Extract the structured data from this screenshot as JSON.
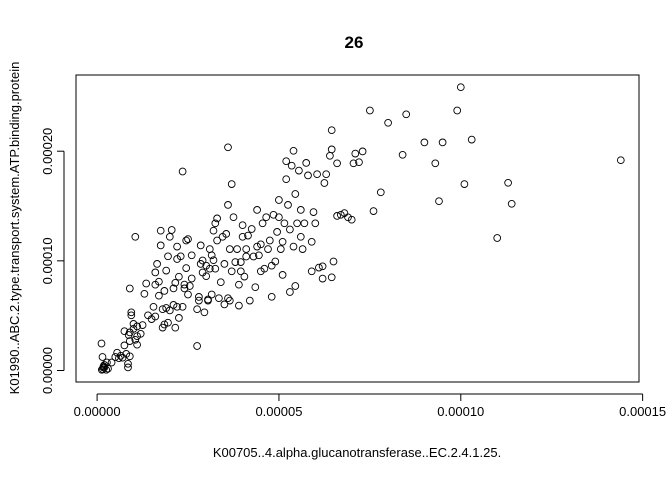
{
  "chart_data": {
    "type": "scatter",
    "title": "26",
    "xlabel": "K00705..4.alpha.glucanotransferase..EC.2.4.1.25.",
    "ylabel": "K01990..ABC.2.type.transport.system.ATP.binding.protein",
    "xlim": [
      -5.8e-06,
      0.000149
    ],
    "ylim": [
      -1.05e-05,
      0.0002695
    ],
    "x_ticks": [
      0,
      5e-05,
      0.0001,
      0.00015
    ],
    "x_tick_labels": [
      "0.00000",
      "0.00005",
      "0.00010",
      "0.00015"
    ],
    "y_ticks": [
      0,
      0.0001,
      0.0002
    ],
    "y_tick_labels": [
      "0.00000",
      "0.00010",
      "0.00020"
    ],
    "grid": false,
    "legend": "none",
    "marker": "open-circle",
    "series": [
      {
        "points": [
          [
            1.3e-06,
            6e-07
          ],
          [
            1.6e-06,
            1.2e-06
          ],
          [
            1.7e-06,
            2.8e-06
          ],
          [
            1.8e-06,
            3.9e-06
          ],
          [
            2e-06,
            2.8e-06
          ],
          [
            2e-06,
            5e-06
          ],
          [
            2.5e-06,
            6e-07
          ],
          [
            3e-06,
            1.7e-06
          ],
          [
            1.5e-06,
            1.23e-05
          ],
          [
            1.2e-06,
            2.46e-05
          ],
          [
            2.7e-06,
            7.3e-06
          ],
          [
            4e-06,
            7.3e-06
          ],
          [
            5e-06,
            1.23e-05
          ],
          [
            5.5e-06,
            1.62e-05
          ],
          [
            6e-06,
            1.12e-05
          ],
          [
            6.5e-06,
            1.34e-05
          ],
          [
            7e-06,
            1.17e-05
          ],
          [
            7.5e-06,
            2.29e-05
          ],
          [
            7.5e-06,
            3.58e-05
          ],
          [
            8e-06,
            1.51e-05
          ],
          [
            8.5e-06,
            2.8e-06
          ],
          [
            8.5e-06,
            6.1e-06
          ],
          [
            9e-06,
            1.29e-05
          ],
          [
            9e-06,
            2.68e-05
          ],
          [
            8.7e-06,
            3.24e-05
          ],
          [
            9e-06,
            3.47e-05
          ],
          [
            9.4e-06,
            5.03e-05
          ],
          [
            9.4e-06,
            5.31e-05
          ],
          [
            9e-06,
            7.48e-05
          ],
          [
            1e-05,
            3.8e-05
          ],
          [
            1e-05,
            4.25e-05
          ],
          [
            1.05e-05,
            2.8e-05
          ],
          [
            1.1e-05,
            2.35e-05
          ],
          [
            1.1e-05,
            3.13e-05
          ],
          [
            1.1e-05,
            4.02e-05
          ],
          [
            1.05e-05,
            0.0001219
          ],
          [
            1.2e-05,
            3.35e-05
          ],
          [
            1.25e-05,
            4.14e-05
          ],
          [
            1.3e-05,
            6.99e-05
          ],
          [
            1.35e-05,
            7.93e-05
          ],
          [
            1.4e-05,
            5.03e-05
          ],
          [
            1.5e-05,
            4.69e-05
          ],
          [
            1.55e-05,
            5.81e-05
          ],
          [
            1.6e-05,
            4.92e-05
          ],
          [
            1.6e-05,
            7.82e-05
          ],
          [
            1.6e-05,
            8.95e-05
          ],
          [
            1.65e-05,
            9.72e-05
          ],
          [
            1.7e-05,
            6.82e-05
          ],
          [
            1.7e-05,
            8.1e-05
          ],
          [
            1.75e-05,
            0.0001141
          ],
          [
            1.75e-05,
            0.0001275
          ],
          [
            1.8e-05,
            3.91e-05
          ],
          [
            1.8e-05,
            5.59e-05
          ],
          [
            1.85e-05,
            4.19e-05
          ],
          [
            1.85e-05,
            7.26e-05
          ],
          [
            1.9e-05,
            5.7e-05
          ],
          [
            1.9e-05,
            9.11e-05
          ],
          [
            1.95e-05,
            4.36e-05
          ],
          [
            1.95e-05,
            0.0001041
          ],
          [
            2e-05,
            5.48e-05
          ],
          [
            2e-05,
            0.0001219
          ],
          [
            2.05e-05,
            0.0001281
          ],
          [
            2.1e-05,
            7.49e-05
          ],
          [
            2.1e-05,
            5.98e-05
          ],
          [
            2.15e-05,
            3.9e-05
          ],
          [
            2.15e-05,
            8e-05
          ],
          [
            2.2e-05,
            5.81e-05
          ],
          [
            2.2e-05,
            0.000113
          ],
          [
            2.2e-05,
            0.0001017
          ],
          [
            2.25e-05,
            8.55e-05
          ],
          [
            2.25e-05,
            4.8e-05
          ],
          [
            2.3e-05,
            0.0001041
          ],
          [
            2.35e-05,
            0.0001815
          ],
          [
            2.35e-05,
            5.81e-05
          ],
          [
            2.4e-05,
            7.83e-05
          ],
          [
            2.4e-05,
            7.49e-05
          ],
          [
            2.45e-05,
            9.34e-05
          ],
          [
            2.45e-05,
            0.0001186
          ],
          [
            2.5e-05,
            6.93e-05
          ],
          [
            2.5e-05,
            0.0001198
          ],
          [
            2.55e-05,
            7.71e-05
          ],
          [
            2.6e-05,
            8.39e-05
          ],
          [
            2.6e-05,
            0.0001051
          ],
          [
            2.75e-05,
            5.59e-05
          ],
          [
            2.75e-05,
            2.23e-05
          ],
          [
            2.8e-05,
            6.37e-05
          ],
          [
            2.8e-05,
            6.71e-05
          ],
          [
            2.85e-05,
            9.72e-05
          ],
          [
            2.85e-05,
            0.0001141
          ],
          [
            2.9e-05,
            8.94e-05
          ],
          [
            2.9e-05,
            0.0001003
          ],
          [
            2.95e-05,
            5.31e-05
          ],
          [
            3e-05,
            8.6e-05
          ],
          [
            3e-05,
            9.56e-05
          ],
          [
            3.05e-05,
            6.37e-05
          ],
          [
            3.05e-05,
            6.47e-05
          ],
          [
            3.1e-05,
            9.28e-05
          ],
          [
            3.1e-05,
            0.0001107
          ],
          [
            3.15e-05,
            0.0001051
          ],
          [
            3.15e-05,
            6.93e-05
          ],
          [
            3.2e-05,
            0.0001006
          ],
          [
            3.2e-05,
            0.0001275
          ],
          [
            3.25e-05,
            9.28e-05
          ],
          [
            3.25e-05,
            0.0001342
          ],
          [
            3.3e-05,
            0.0001186
          ],
          [
            3.3e-05,
            0.0001387
          ],
          [
            3.35e-05,
            6.59e-05
          ],
          [
            3.4e-05,
            8.05e-05
          ],
          [
            3.45e-05,
            0.0001219
          ],
          [
            3.5e-05,
            6.03e-05
          ],
          [
            3.5e-05,
            9.72e-05
          ],
          [
            3.55e-05,
            0.0001246
          ],
          [
            3.6e-05,
            6.59e-05
          ],
          [
            3.6e-05,
            0.000151
          ],
          [
            3.6e-05,
            0.0002036
          ],
          [
            3.65e-05,
            6.37e-05
          ],
          [
            3.65e-05,
            0.0001107
          ],
          [
            3.7e-05,
            9.05e-05
          ],
          [
            3.7e-05,
            0.00017
          ],
          [
            3.75e-05,
            0.0001398
          ],
          [
            3.8e-05,
            9.89e-05
          ],
          [
            3.85e-05,
            0.0001107
          ],
          [
            3.9e-05,
            5.92e-05
          ],
          [
            3.9e-05,
            7.82e-05
          ],
          [
            3.95e-05,
            9.05e-05
          ],
          [
            3.95e-05,
            9.89e-05
          ],
          [
            4e-05,
            0.0001219
          ],
          [
            4e-05,
            0.0001325
          ],
          [
            4.05e-05,
            8.56e-05
          ],
          [
            4.1e-05,
            0.0001107
          ],
          [
            4.1e-05,
            0.000104
          ],
          [
            4.15e-05,
            0.000123
          ],
          [
            4.2e-05,
            6.37e-05
          ],
          [
            4.25e-05,
            0.000129
          ],
          [
            4.3e-05,
            0.000104
          ],
          [
            4.35e-05,
            7.6e-05
          ],
          [
            4.4e-05,
            0.000113
          ],
          [
            4.4e-05,
            0.0001465
          ],
          [
            4.45e-05,
            0.0001051
          ],
          [
            4.5e-05,
            0.0001151
          ],
          [
            4.5e-05,
            9.05e-05
          ],
          [
            4.55e-05,
            0.0001342
          ],
          [
            4.6e-05,
            9.28e-05
          ],
          [
            4.65e-05,
            0.0001398
          ],
          [
            4.7e-05,
            0.0001107
          ],
          [
            4.75e-05,
            0.0001186
          ],
          [
            4.8e-05,
            6.72e-05
          ],
          [
            4.8e-05,
            9.56e-05
          ],
          [
            4.85e-05,
            0.000142
          ],
          [
            4.9e-05,
            9.94e-05
          ],
          [
            4.95e-05,
            0.0001264
          ],
          [
            5e-05,
            0.0001398
          ],
          [
            5e-05,
            0.0001555
          ],
          [
            5.05e-05,
            0.0001107
          ],
          [
            5.1e-05,
            8.72e-05
          ],
          [
            5.1e-05,
            0.0001174
          ],
          [
            5.15e-05,
            0.0001342
          ],
          [
            5.2e-05,
            0.0001745
          ],
          [
            5.2e-05,
            0.0001909
          ],
          [
            5.25e-05,
            0.000151
          ],
          [
            5.3e-05,
            7.16e-05
          ],
          [
            5.3e-05,
            0.0001286
          ],
          [
            5.35e-05,
            0.0001868
          ],
          [
            5.4e-05,
            0.0002004
          ],
          [
            5.4e-05,
            0.000113
          ],
          [
            5.45e-05,
            0.000161
          ],
          [
            5.45e-05,
            7.71e-05
          ],
          [
            5.5e-05,
            0.0001342
          ],
          [
            5.55e-05,
            0.0001823
          ],
          [
            5.6e-05,
            0.0001219
          ],
          [
            5.6e-05,
            0.0001465
          ],
          [
            5.65e-05,
            0.0001107
          ],
          [
            5.7e-05,
            0.0001342
          ],
          [
            5.75e-05,
            0.0001893
          ],
          [
            5.8e-05,
            0.0001779
          ],
          [
            5.9e-05,
            9.05e-05
          ],
          [
            5.9e-05,
            0.0001174
          ],
          [
            5.95e-05,
            0.0001445
          ],
          [
            6e-05,
            0.0001342
          ],
          [
            6.05e-05,
            0.000179
          ],
          [
            6.1e-05,
            9.38e-05
          ],
          [
            6.2e-05,
            8.38e-05
          ],
          [
            6.2e-05,
            9.5e-05
          ],
          [
            6.25e-05,
            0.000171
          ],
          [
            6.3e-05,
            0.000179
          ],
          [
            6.4e-05,
            0.0001958
          ],
          [
            6.45e-05,
            0.0002016
          ],
          [
            6.45e-05,
            0.0002192
          ],
          [
            6.45e-05,
            8.5e-05
          ],
          [
            6.5e-05,
            9.94e-05
          ],
          [
            6.6e-05,
            0.000189
          ],
          [
            6.6e-05,
            0.000141
          ],
          [
            6.7e-05,
            0.000142
          ],
          [
            6.8e-05,
            0.0001435
          ],
          [
            6.9e-05,
            0.0001397
          ],
          [
            7e-05,
            0.0001375
          ],
          [
            7.05e-05,
            0.000189
          ],
          [
            7.1e-05,
            0.0001978
          ],
          [
            7.2e-05,
            0.00019
          ],
          [
            7.3e-05,
            0.0001998
          ],
          [
            7.5e-05,
            0.0002371
          ],
          [
            7.6e-05,
            0.0001454
          ],
          [
            7.8e-05,
            0.0001625
          ],
          [
            8e-05,
            0.0002259
          ],
          [
            8.4e-05,
            0.0001967
          ],
          [
            8.5e-05,
            0.0002337
          ],
          [
            9e-05,
            0.000208
          ],
          [
            9.3e-05,
            0.000189
          ],
          [
            9.4e-05,
            0.0001544
          ],
          [
            9.5e-05,
            0.000208
          ],
          [
            9.9e-05,
            0.0002371
          ],
          [
            0.0001,
            0.0002584
          ],
          [
            0.000101,
            0.00017
          ],
          [
            0.000103,
            0.0002106
          ],
          [
            0.00011,
            0.0001208
          ],
          [
            0.000113,
            0.0001712
          ],
          [
            0.000114,
            0.000152
          ],
          [
            0.000144,
            0.0001918
          ]
        ]
      }
    ]
  }
}
